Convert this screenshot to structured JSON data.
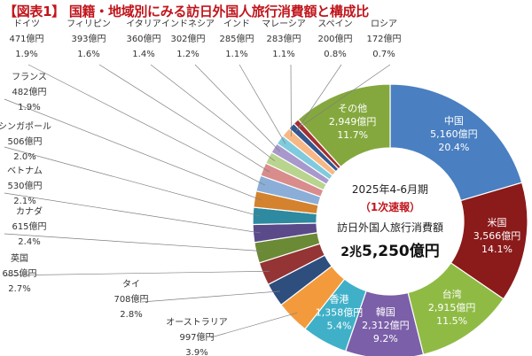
{
  "title": "【図表1】 国籍・地域別にみる訪日外国人旅行消費額と構成比",
  "chart_data": {
    "type": "pie",
    "variant": "donut",
    "title": "【図表1】 国籍・地域別にみる訪日外国人旅行消費額と構成比",
    "center": {
      "period": "2025年4-6月期",
      "note": "（1次速報）",
      "label": "訪日外国人旅行消費額",
      "total_prefix": "2兆",
      "total_main": "5,250億円"
    },
    "slices": [
      {
        "name": "中国",
        "value": 5160,
        "value_label": "5,160億円",
        "share_label": "20.4%",
        "color": "#4a7fc1",
        "text_color": "#ffffff"
      },
      {
        "name": "米国",
        "value": 3566,
        "value_label": "3,566億円",
        "share_label": "14.1%",
        "color": "#8b1a1a",
        "text_color": "#ffffff"
      },
      {
        "name": "台湾",
        "value": 2915,
        "value_label": "2,915億円",
        "share_label": "11.5%",
        "color": "#8fbb45",
        "text_color": "#ffffff"
      },
      {
        "name": "韓国",
        "value": 2312,
        "value_label": "2,312億円",
        "share_label": "9.2%",
        "color": "#7b5fa8",
        "text_color": "#ffffff"
      },
      {
        "name": "香港",
        "value": 1358,
        "value_label": "1,358億円",
        "share_label": "5.4%",
        "color": "#3fb0c8",
        "text_color": "#ffffff"
      },
      {
        "name": "オーストラリア",
        "value": 997,
        "value_label": "997億円",
        "share_label": "3.9%",
        "color": "#f39b3c",
        "text_color": "#333333"
      },
      {
        "name": "タイ",
        "value": 708,
        "value_label": "708億円",
        "share_label": "2.8%",
        "color": "#2e4e7e",
        "text_color": "#333333"
      },
      {
        "name": "英国",
        "value": 685,
        "value_label": "685億円",
        "share_label": "2.7%",
        "color": "#943434",
        "text_color": "#333333"
      },
      {
        "name": "カナダ",
        "value": 615,
        "value_label": "615億円",
        "share_label": "2.4%",
        "color": "#6b8a35",
        "text_color": "#333333"
      },
      {
        "name": "ベトナム",
        "value": 530,
        "value_label": "530億円",
        "share_label": "2.1%",
        "color": "#5b4a8a",
        "text_color": "#333333"
      },
      {
        "name": "シンガポール",
        "value": 506,
        "value_label": "506億円",
        "share_label": "2.0%",
        "color": "#2d8aa0",
        "text_color": "#333333"
      },
      {
        "name": "フランス",
        "value": 482,
        "value_label": "482億円",
        "share_label": "1.9%",
        "color": "#d4822e",
        "text_color": "#333333"
      },
      {
        "name": "ドイツ",
        "value": 471,
        "value_label": "471億円",
        "share_label": "1.9%",
        "color": "#8aaed8",
        "text_color": "#333333"
      },
      {
        "name": "フィリピン",
        "value": 393,
        "value_label": "393億円",
        "share_label": "1.6%",
        "color": "#d98c8c",
        "text_color": "#333333"
      },
      {
        "name": "イタリア",
        "value": 360,
        "value_label": "360億円",
        "share_label": "1.4%",
        "color": "#b8d48e",
        "text_color": "#333333"
      },
      {
        "name": "インドネシア",
        "value": 302,
        "value_label": "302億円",
        "share_label": "1.2%",
        "color": "#a898cc",
        "text_color": "#333333"
      },
      {
        "name": "インド",
        "value": 285,
        "value_label": "285億円",
        "share_label": "1.1%",
        "color": "#7fcbdd",
        "text_color": "#333333"
      },
      {
        "name": "マレーシア",
        "value": 283,
        "value_label": "283億円",
        "share_label": "1.1%",
        "color": "#f7b885",
        "text_color": "#333333"
      },
      {
        "name": "スペイン",
        "value": 200,
        "value_label": "200億円",
        "share_label": "0.8%",
        "color": "#34578f",
        "text_color": "#333333"
      },
      {
        "name": "ロシア",
        "value": 172,
        "value_label": "172億円",
        "share_label": "0.7%",
        "color": "#a33030",
        "text_color": "#333333"
      },
      {
        "name": "その他",
        "value": 2949,
        "value_label": "2,949億円",
        "share_label": "11.7%",
        "color": "#84a83e",
        "text_color": "#ffffff"
      }
    ]
  }
}
